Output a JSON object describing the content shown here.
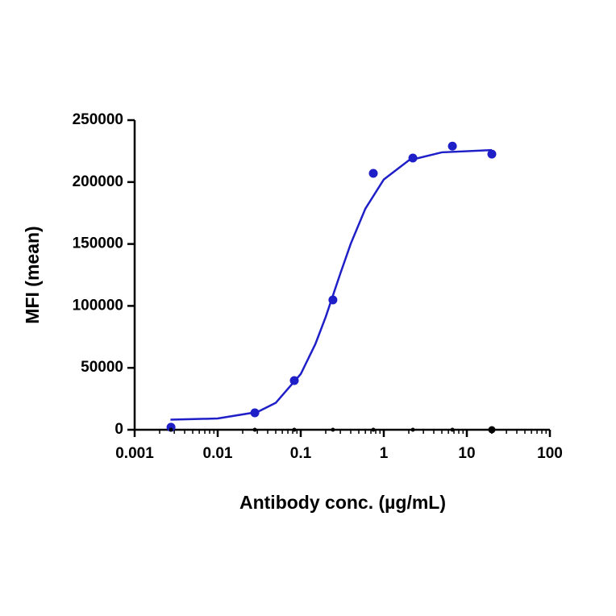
{
  "chart_data": {
    "type": "scatter",
    "x_label": "Antibody conc. (µg/mL)",
    "y_label": "MFI (mean)",
    "xlog": true,
    "xlim": [
      0.001,
      100
    ],
    "xticks": [
      0.001,
      0.01,
      0.1,
      1,
      10,
      100
    ],
    "ylim": [
      0,
      250000
    ],
    "yticks": [
      0,
      50000,
      100000,
      150000,
      200000,
      250000
    ],
    "series": [
      {
        "color": "#1f1fc8",
        "x": [
          0.00274,
          0.028,
          0.0836,
          0.244,
          0.748,
          2.24,
          6.7,
          20
        ],
        "values": [
          2000,
          13700,
          39700,
          104800,
          207000,
          219400,
          229000,
          222600
        ]
      },
      {
        "color": "#000000",
        "x": [
          0.00274,
          0.028,
          0.0836,
          0.244,
          0.748,
          2.24,
          6.7,
          20
        ],
        "values": [
          0,
          0,
          0,
          0,
          0,
          0,
          0,
          0
        ]
      }
    ],
    "fit": {
      "color": "#1f1fc8",
      "x": [
        0.0027,
        0.01,
        0.03,
        0.05,
        0.1,
        0.15,
        0.2,
        0.3,
        0.4,
        0.6,
        1,
        2,
        5,
        20
      ],
      "values": [
        8100,
        9100,
        14300,
        21700,
        45000,
        69200,
        91200,
        126200,
        150200,
        178500,
        202100,
        217500,
        224000,
        225800
      ]
    }
  }
}
